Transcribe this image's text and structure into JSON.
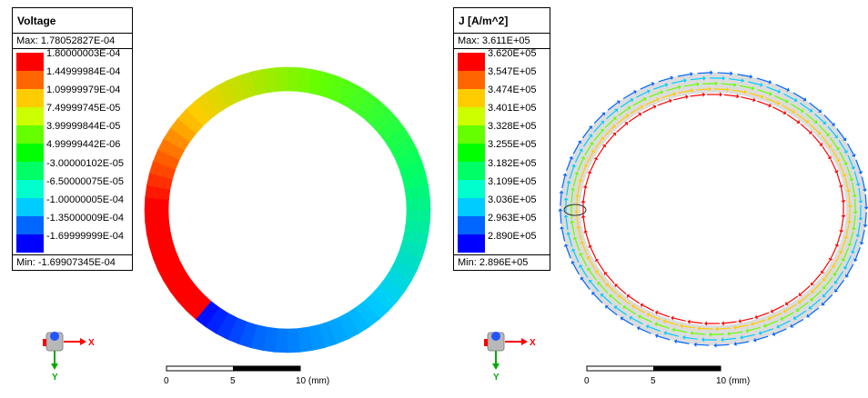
{
  "left": {
    "legend": {
      "title": "Voltage",
      "max": "Max: 1.78052827E-04",
      "min": "Min: -1.69907345E-04",
      "ticks": [
        "1.80000003E-04",
        "1.44999984E-04",
        "1.09999979E-04",
        "7.49999745E-05",
        "3.99999844E-05",
        "4.99999442E-06",
        "-3.00000102E-05",
        "-6.50000075E-05",
        "-1.00000005E-04",
        "-1.35000009E-04",
        "-1.69999999E-04"
      ],
      "colors": [
        "#ff0000",
        "#ff6600",
        "#ffcc00",
        "#ccff00",
        "#66ff00",
        "#00ff00",
        "#00ff66",
        "#00ffcc",
        "#00ccff",
        "#0066ff",
        "#0000ff"
      ]
    },
    "scale": {
      "tick0": "0",
      "tick1": "5",
      "tick2": "10 (mm)"
    },
    "axes": {
      "x": "X",
      "y": "Y"
    }
  },
  "right": {
    "legend": {
      "title": "J [A/m^2]",
      "max": "Max:   3.611E+05",
      "min": "Min:   2.896E+05",
      "ticks": [
        "3.620E+05",
        "3.547E+05",
        "3.474E+05",
        "3.401E+05",
        "3.328E+05",
        "3.255E+05",
        "3.182E+05",
        "3.109E+05",
        "3.036E+05",
        "2.963E+05",
        "2.890E+05"
      ],
      "colors": [
        "#ff0000",
        "#ff6600",
        "#ffcc00",
        "#ccff00",
        "#66ff00",
        "#00ff00",
        "#00ff66",
        "#00ffcc",
        "#00ccff",
        "#0066ff",
        "#0000ff"
      ]
    },
    "scale": {
      "tick0": "0",
      "tick1": "5",
      "tick2": "10 (mm)"
    },
    "axes": {
      "x": "X",
      "y": "Y"
    }
  }
}
